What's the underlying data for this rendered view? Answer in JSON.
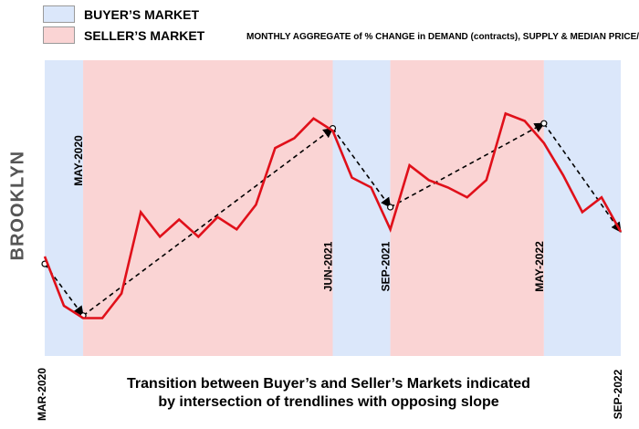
{
  "legend": {
    "buyers": {
      "label": "BUYER’S MARKET",
      "color": "#dbe7fa"
    },
    "sellers": {
      "label": "SELLER’S MARKET",
      "color": "#fad4d4"
    }
  },
  "subtitle": "MONTHLY AGGREGATE of % CHANGE in DEMAND (contracts), SUPPLY & MEDIAN PRICE/SF",
  "side_label": "BROOKLYN",
  "caption": {
    "line1": "Transition between Buyer’s and Seller’s Markets indicated",
    "line2": "by intersection of trendlines with opposing slope"
  },
  "chart_data": {
    "type": "line",
    "title": "MONTHLY AGGREGATE of % CHANGE in DEMAND (contracts), SUPPLY & MEDIAN PRICE/SF",
    "x_start": "2020-03",
    "x_end": "2022-09",
    "months": [
      "2020-03",
      "2020-04",
      "2020-05",
      "2020-06",
      "2020-07",
      "2020-08",
      "2020-09",
      "2020-10",
      "2020-11",
      "2020-12",
      "2021-01",
      "2021-02",
      "2021-03",
      "2021-04",
      "2021-05",
      "2021-06",
      "2021-07",
      "2021-08",
      "2021-09",
      "2021-10",
      "2021-11",
      "2021-12",
      "2022-01",
      "2022-02",
      "2022-03",
      "2022-04",
      "2022-05",
      "2022-06",
      "2022-07",
      "2022-08",
      "2022-09"
    ],
    "values": [
      30,
      10,
      5,
      5,
      15,
      48,
      38,
      45,
      38,
      46,
      41,
      51,
      74,
      78,
      86,
      81,
      62,
      58,
      41,
      67,
      61,
      58,
      54,
      61,
      88,
      85,
      76,
      63,
      48,
      54,
      40
    ],
    "y_range": [
      0,
      100
    ],
    "regimes": [
      {
        "market": "buyers",
        "start": "2020-03",
        "end": "2020-05"
      },
      {
        "market": "sellers",
        "start": "2020-05",
        "end": "2021-06"
      },
      {
        "market": "buyers",
        "start": "2021-06",
        "end": "2021-09"
      },
      {
        "market": "sellers",
        "start": "2021-09",
        "end": "2022-05"
      },
      {
        "market": "buyers",
        "start": "2022-05",
        "end": "2022-09"
      }
    ],
    "transition_labels": [
      {
        "text": "MAY-2020",
        "month": "2020-05",
        "placement": "top"
      },
      {
        "text": "JUN-2021",
        "month": "2021-06",
        "placement": "bottom"
      },
      {
        "text": "SEP-2021",
        "month": "2021-09",
        "placement": "bottom"
      },
      {
        "text": "MAY-2022",
        "month": "2022-05",
        "placement": "bottom"
      }
    ],
    "end_labels": {
      "start": "MAR-2020",
      "end": "SEP-2022"
    },
    "trendline_points": [
      {
        "month": "2020-03",
        "value": 27
      },
      {
        "month": "2020-05",
        "value": 6
      },
      {
        "month": "2021-06",
        "value": 82
      },
      {
        "month": "2021-09",
        "value": 50
      },
      {
        "month": "2022-05",
        "value": 84
      },
      {
        "month": "2022-09",
        "value": 40
      }
    ],
    "series_color": "#e0101a",
    "trend_color": "#000000",
    "grid": false,
    "legend_position": "top-left"
  }
}
